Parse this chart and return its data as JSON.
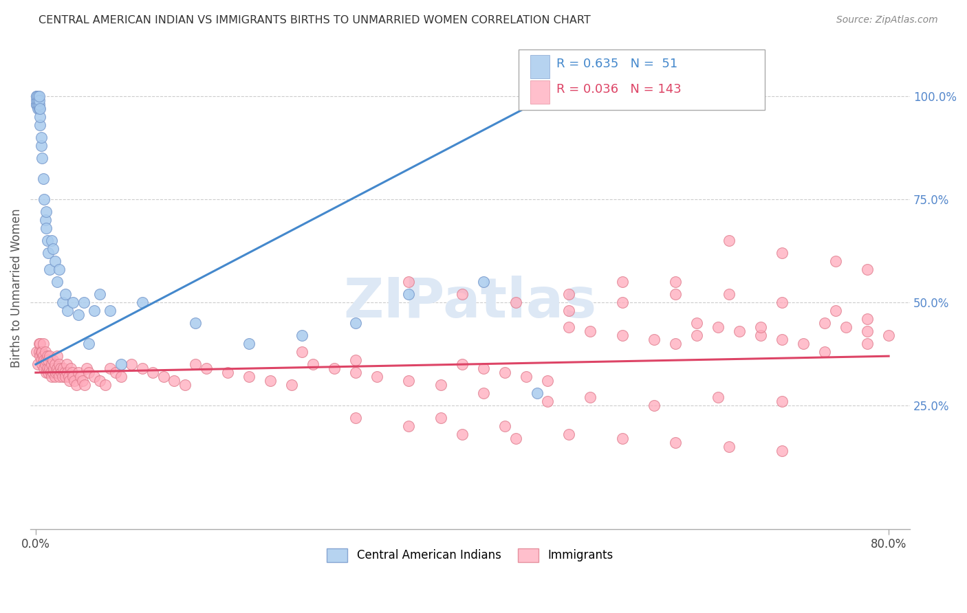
{
  "title": "CENTRAL AMERICAN INDIAN VS IMMIGRANTS BIRTHS TO UNMARRIED WOMEN CORRELATION CHART",
  "source": "Source: ZipAtlas.com",
  "ylabel": "Births to Unmarried Women",
  "legend1_label": "Central American Indians",
  "legend2_label": "Immigrants",
  "r1": 0.635,
  "n1": 51,
  "r2": 0.036,
  "n2": 143,
  "blue_color": "#aaccee",
  "blue_edge_color": "#7799cc",
  "pink_color": "#ffaabb",
  "pink_edge_color": "#dd7788",
  "blue_line_color": "#4488cc",
  "pink_line_color": "#dd4466",
  "watermark_color": "#dde8f5",
  "watermark": "ZIPatlas",
  "xlim_min": -0.005,
  "xlim_max": 0.82,
  "ylim_min": -0.05,
  "ylim_max": 1.12,
  "blue_x": [
    0.001,
    0.001,
    0.001,
    0.001,
    0.001,
    0.002,
    0.002,
    0.002,
    0.002,
    0.003,
    0.003,
    0.003,
    0.003,
    0.004,
    0.004,
    0.004,
    0.005,
    0.005,
    0.006,
    0.007,
    0.008,
    0.009,
    0.01,
    0.01,
    0.011,
    0.012,
    0.013,
    0.015,
    0.016,
    0.018,
    0.02,
    0.022,
    0.025,
    0.028,
    0.03,
    0.035,
    0.04,
    0.045,
    0.05,
    0.055,
    0.06,
    0.07,
    0.08,
    0.1,
    0.15,
    0.2,
    0.25,
    0.3,
    0.35,
    0.42,
    0.47
  ],
  "blue_y": [
    0.98,
    0.98,
    0.99,
    1.0,
    1.0,
    0.97,
    0.98,
    0.99,
    1.0,
    0.97,
    0.98,
    0.99,
    1.0,
    0.93,
    0.95,
    0.97,
    0.88,
    0.9,
    0.85,
    0.8,
    0.75,
    0.7,
    0.68,
    0.72,
    0.65,
    0.62,
    0.58,
    0.65,
    0.63,
    0.6,
    0.55,
    0.58,
    0.5,
    0.52,
    0.48,
    0.5,
    0.47,
    0.5,
    0.4,
    0.48,
    0.52,
    0.48,
    0.35,
    0.5,
    0.45,
    0.4,
    0.42,
    0.45,
    0.52,
    0.55,
    0.28
  ],
  "pink_x": [
    0.001,
    0.002,
    0.003,
    0.003,
    0.004,
    0.004,
    0.005,
    0.005,
    0.006,
    0.006,
    0.007,
    0.007,
    0.008,
    0.008,
    0.009,
    0.009,
    0.01,
    0.01,
    0.011,
    0.011,
    0.012,
    0.012,
    0.013,
    0.013,
    0.014,
    0.015,
    0.015,
    0.016,
    0.016,
    0.017,
    0.018,
    0.018,
    0.019,
    0.02,
    0.02,
    0.021,
    0.022,
    0.022,
    0.023,
    0.024,
    0.025,
    0.026,
    0.027,
    0.028,
    0.029,
    0.03,
    0.031,
    0.032,
    0.033,
    0.034,
    0.035,
    0.036,
    0.038,
    0.04,
    0.042,
    0.044,
    0.046,
    0.048,
    0.05,
    0.055,
    0.06,
    0.065,
    0.07,
    0.075,
    0.08,
    0.09,
    0.1,
    0.11,
    0.12,
    0.13,
    0.14,
    0.15,
    0.16,
    0.18,
    0.2,
    0.22,
    0.24,
    0.26,
    0.28,
    0.3,
    0.32,
    0.35,
    0.38,
    0.4,
    0.42,
    0.44,
    0.46,
    0.48,
    0.5,
    0.52,
    0.55,
    0.58,
    0.6,
    0.62,
    0.64,
    0.66,
    0.68,
    0.7,
    0.72,
    0.74,
    0.76,
    0.78,
    0.8,
    0.35,
    0.4,
    0.45,
    0.5,
    0.55,
    0.6,
    0.65,
    0.7,
    0.75,
    0.78,
    0.5,
    0.55,
    0.6,
    0.65,
    0.7,
    0.75,
    0.78,
    0.62,
    0.68,
    0.74,
    0.78,
    0.42,
    0.48,
    0.52,
    0.58,
    0.64,
    0.7,
    0.3,
    0.35,
    0.4,
    0.45,
    0.25,
    0.3,
    0.38,
    0.44,
    0.5,
    0.55,
    0.6,
    0.65,
    0.7
  ],
  "pink_y": [
    0.38,
    0.35,
    0.4,
    0.38,
    0.37,
    0.4,
    0.36,
    0.38,
    0.35,
    0.38,
    0.37,
    0.4,
    0.34,
    0.36,
    0.35,
    0.38,
    0.33,
    0.36,
    0.34,
    0.37,
    0.33,
    0.36,
    0.34,
    0.37,
    0.33,
    0.32,
    0.35,
    0.33,
    0.36,
    0.34,
    0.32,
    0.35,
    0.33,
    0.34,
    0.37,
    0.33,
    0.32,
    0.35,
    0.34,
    0.33,
    0.32,
    0.34,
    0.33,
    0.32,
    0.35,
    0.33,
    0.32,
    0.31,
    0.34,
    0.33,
    0.32,
    0.31,
    0.3,
    0.33,
    0.32,
    0.31,
    0.3,
    0.34,
    0.33,
    0.32,
    0.31,
    0.3,
    0.34,
    0.33,
    0.32,
    0.35,
    0.34,
    0.33,
    0.32,
    0.31,
    0.3,
    0.35,
    0.34,
    0.33,
    0.32,
    0.31,
    0.3,
    0.35,
    0.34,
    0.33,
    0.32,
    0.31,
    0.3,
    0.35,
    0.34,
    0.33,
    0.32,
    0.31,
    0.44,
    0.43,
    0.42,
    0.41,
    0.4,
    0.45,
    0.44,
    0.43,
    0.42,
    0.41,
    0.4,
    0.45,
    0.44,
    0.43,
    0.42,
    0.55,
    0.52,
    0.5,
    0.52,
    0.55,
    0.52,
    0.65,
    0.62,
    0.6,
    0.58,
    0.48,
    0.5,
    0.55,
    0.52,
    0.5,
    0.48,
    0.46,
    0.42,
    0.44,
    0.38,
    0.4,
    0.28,
    0.26,
    0.27,
    0.25,
    0.27,
    0.26,
    0.22,
    0.2,
    0.18,
    0.17,
    0.38,
    0.36,
    0.22,
    0.2,
    0.18,
    0.17,
    0.16,
    0.15,
    0.14
  ]
}
